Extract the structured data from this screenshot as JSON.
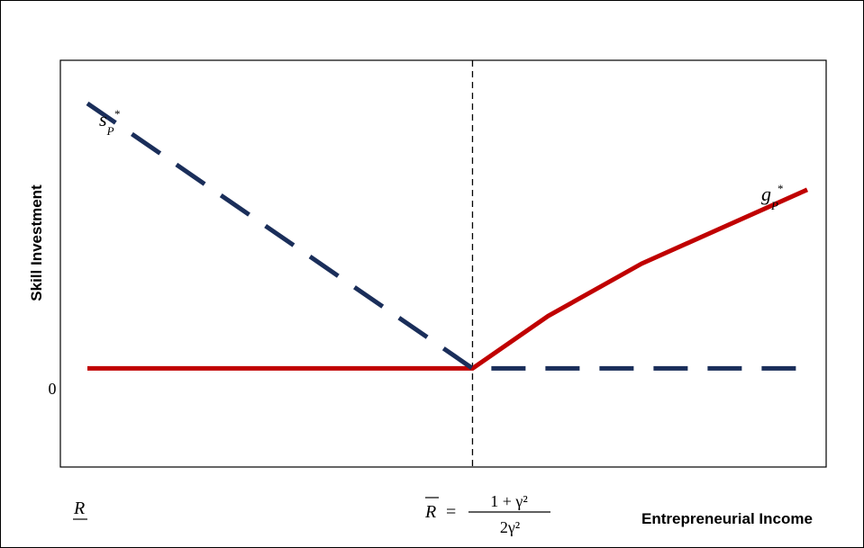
{
  "chart_data": {
    "type": "line",
    "title": "",
    "xlabel": "Entrepreneurial Income",
    "ylabel": "Skill Investment",
    "y_tick_label": "0",
    "x_ticks": {
      "left": "R",
      "threshold_lhs": "R",
      "threshold_eq": "=",
      "threshold_num": "1 + γ²",
      "threshold_den": "2γ²"
    },
    "x_domain": [
      0,
      1
    ],
    "y_domain": [
      -0.32,
      1.0
    ],
    "threshold_x": 0.535,
    "series": [
      {
        "name": "s*P",
        "label_main": "s",
        "label_sub": "P",
        "label_sup": "*",
        "style": "dashed",
        "color": "#1a2e5a",
        "points": [
          [
            0,
            0.86
          ],
          [
            0.535,
            0
          ],
          [
            1,
            0
          ]
        ]
      },
      {
        "name": "g*P",
        "label_main": "g",
        "label_sub": "P",
        "label_sup": "*",
        "style": "solid",
        "color": "#c00000",
        "points": [
          [
            0,
            0
          ],
          [
            0.535,
            0
          ],
          [
            0.64,
            0.17
          ],
          [
            0.77,
            0.34
          ],
          [
            1,
            0.58
          ]
        ]
      }
    ],
    "grid": false,
    "legend": "none"
  }
}
